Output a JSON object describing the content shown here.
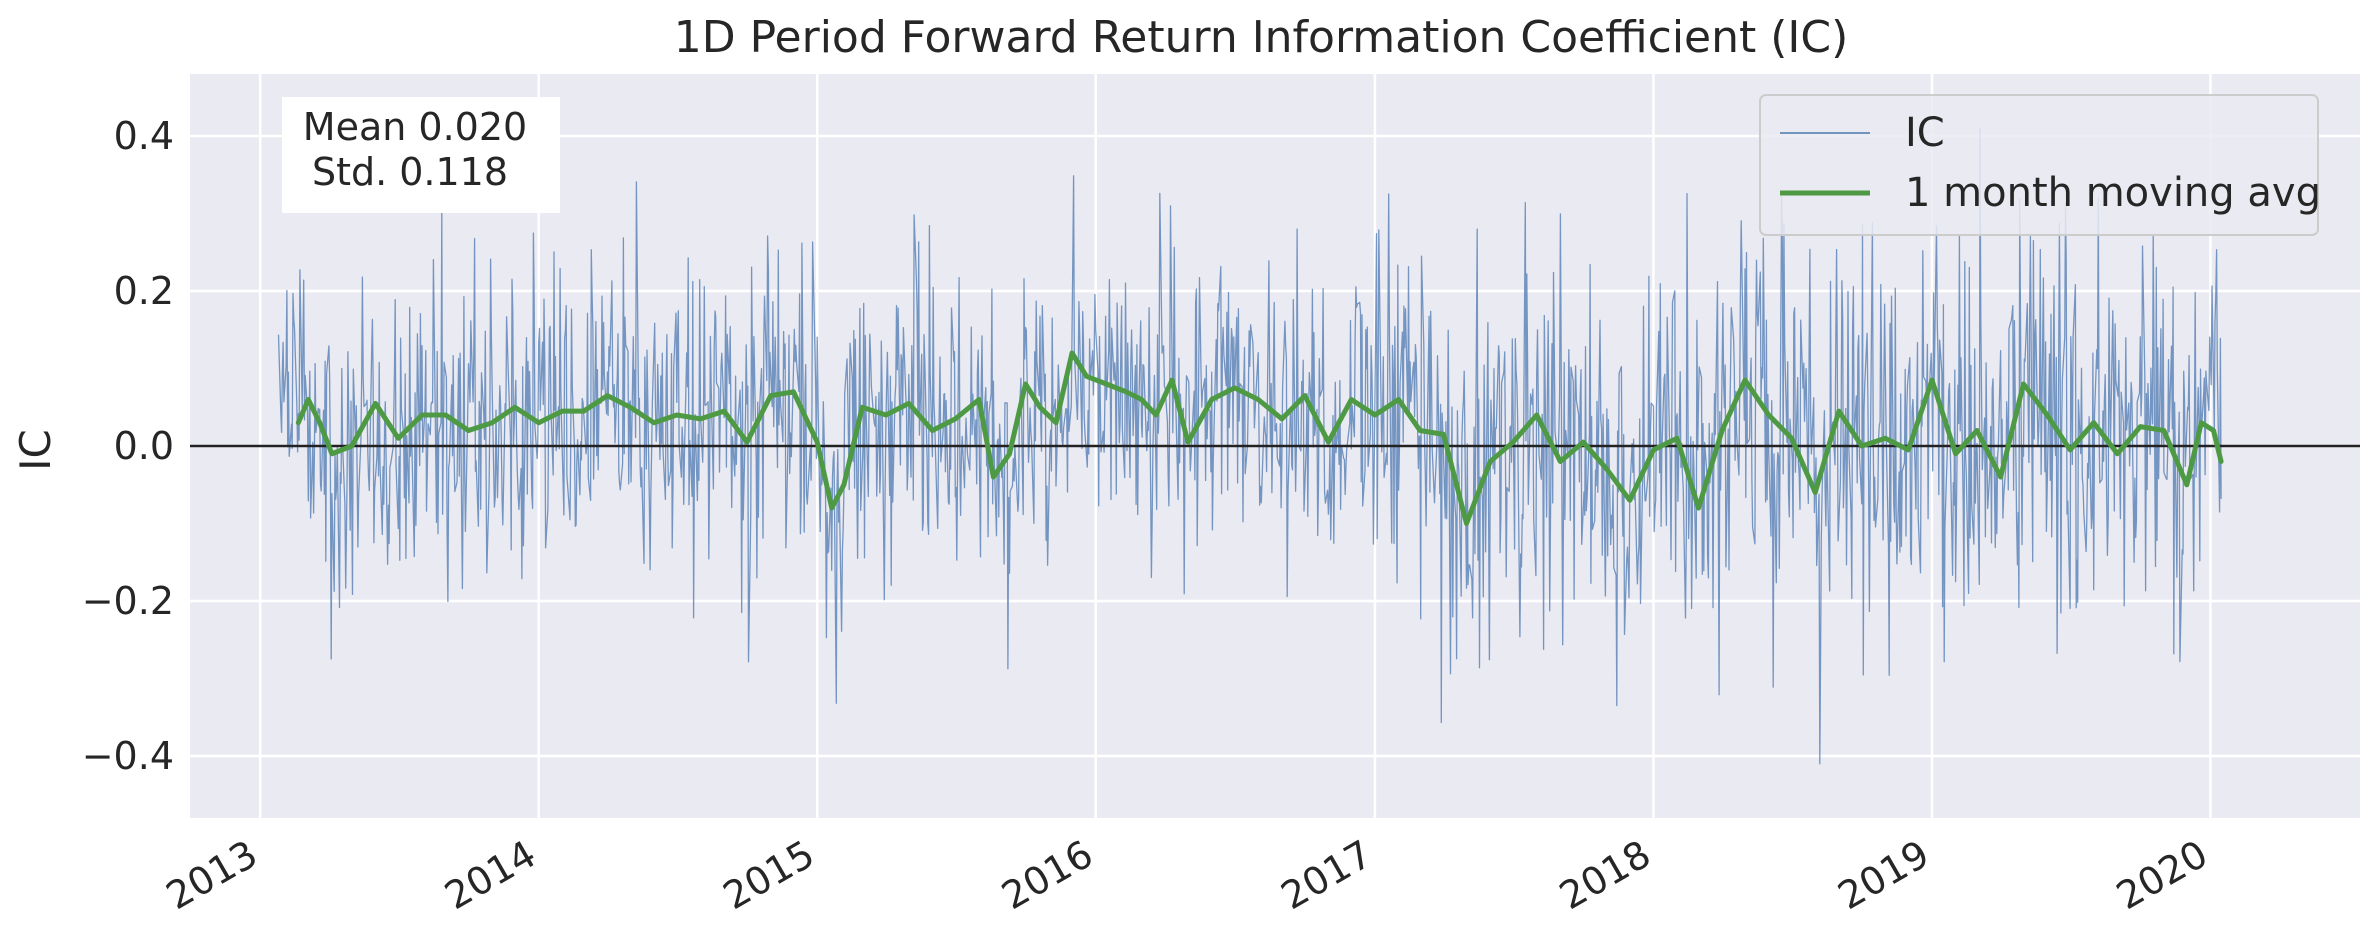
{
  "chart_data": {
    "type": "line",
    "title": "1D Period Forward Return Information Coefficient (IC)",
    "xlabel": "",
    "ylabel": "IC",
    "xlim": [
      "2012-10-01",
      "2020-07-15"
    ],
    "ylim": [
      -0.48,
      0.48
    ],
    "x_ticks": [
      "2013",
      "2014",
      "2015",
      "2016",
      "2017",
      "2018",
      "2019",
      "2020"
    ],
    "y_ticks": [
      -0.4,
      -0.2,
      0.0,
      0.2,
      0.4
    ],
    "y_tick_labels": [
      "−0.4",
      "−0.2",
      "0.0",
      "0.2",
      "0.4"
    ],
    "grid": true,
    "legend_position": "top-right",
    "stats_box": {
      "line1": "Mean 0.020",
      "line2": "Std. 0.118"
    },
    "zero_line": 0.0,
    "background_color": "#eaeaf2",
    "series": [
      {
        "name": "IC",
        "style": "thin-line",
        "color": "#4c78b0",
        "data_start": "2013-01-25",
        "data_end": "2020-01-15",
        "mean": 0.02,
        "std": 0.118,
        "min": -0.41,
        "max": 0.41
      },
      {
        "name": "1 month moving avg",
        "style": "thick-line",
        "color": "#4e9a44",
        "points": [
          [
            "2013-02-20",
            0.03
          ],
          [
            "2013-03-05",
            0.06
          ],
          [
            "2013-03-20",
            0.03
          ],
          [
            "2013-04-05",
            -0.01
          ],
          [
            "2013-05-01",
            0.0
          ],
          [
            "2013-06-01",
            0.055
          ],
          [
            "2013-07-01",
            0.01
          ],
          [
            "2013-08-01",
            0.04
          ],
          [
            "2013-09-01",
            0.04
          ],
          [
            "2013-10-01",
            0.02
          ],
          [
            "2013-11-01",
            0.03
          ],
          [
            "2013-12-01",
            0.05
          ],
          [
            "2014-01-01",
            0.03
          ],
          [
            "2014-02-01",
            0.045
          ],
          [
            "2014-03-01",
            0.045
          ],
          [
            "2014-04-01",
            0.065
          ],
          [
            "2014-05-01",
            0.05
          ],
          [
            "2014-06-01",
            0.03
          ],
          [
            "2014-07-01",
            0.04
          ],
          [
            "2014-08-01",
            0.035
          ],
          [
            "2014-09-01",
            0.045
          ],
          [
            "2014-10-01",
            0.005
          ],
          [
            "2014-11-01",
            0.065
          ],
          [
            "2014-12-01",
            0.07
          ],
          [
            "2015-01-01",
            0.005
          ],
          [
            "2015-01-20",
            -0.08
          ],
          [
            "2015-02-05",
            -0.05
          ],
          [
            "2015-03-01",
            0.05
          ],
          [
            "2015-04-01",
            0.04
          ],
          [
            "2015-05-01",
            0.055
          ],
          [
            "2015-06-01",
            0.02
          ],
          [
            "2015-07-01",
            0.035
          ],
          [
            "2015-08-01",
            0.06
          ],
          [
            "2015-08-20",
            -0.04
          ],
          [
            "2015-09-10",
            -0.01
          ],
          [
            "2015-10-01",
            0.08
          ],
          [
            "2015-10-20",
            0.05
          ],
          [
            "2015-11-10",
            0.03
          ],
          [
            "2015-12-01",
            0.12
          ],
          [
            "2015-12-20",
            0.09
          ],
          [
            "2016-01-15",
            0.08
          ],
          [
            "2016-02-10",
            0.07
          ],
          [
            "2016-03-01",
            0.06
          ],
          [
            "2016-03-20",
            0.04
          ],
          [
            "2016-04-10",
            0.085
          ],
          [
            "2016-05-01",
            0.005
          ],
          [
            "2016-06-01",
            0.06
          ],
          [
            "2016-07-01",
            0.075
          ],
          [
            "2016-08-01",
            0.06
          ],
          [
            "2016-09-01",
            0.035
          ],
          [
            "2016-10-01",
            0.065
          ],
          [
            "2016-11-01",
            0.005
          ],
          [
            "2016-12-01",
            0.06
          ],
          [
            "2017-01-01",
            0.04
          ],
          [
            "2017-02-01",
            0.06
          ],
          [
            "2017-03-01",
            0.02
          ],
          [
            "2017-04-01",
            0.015
          ],
          [
            "2017-05-01",
            -0.1
          ],
          [
            "2017-06-01",
            -0.02
          ],
          [
            "2017-07-01",
            0.005
          ],
          [
            "2017-08-01",
            0.04
          ],
          [
            "2017-09-01",
            -0.02
          ],
          [
            "2017-10-01",
            0.005
          ],
          [
            "2017-11-01",
            -0.03
          ],
          [
            "2017-12-01",
            -0.07
          ],
          [
            "2018-01-01",
            -0.005
          ],
          [
            "2018-02-01",
            0.01
          ],
          [
            "2018-03-01",
            -0.08
          ],
          [
            "2018-04-01",
            0.02
          ],
          [
            "2018-05-01",
            0.085
          ],
          [
            "2018-06-01",
            0.04
          ],
          [
            "2018-07-01",
            0.01
          ],
          [
            "2018-08-01",
            -0.06
          ],
          [
            "2018-09-01",
            0.045
          ],
          [
            "2018-10-01",
            0.0
          ],
          [
            "2018-11-01",
            0.01
          ],
          [
            "2018-12-01",
            -0.005
          ],
          [
            "2019-01-01",
            0.085
          ],
          [
            "2019-02-01",
            -0.01
          ],
          [
            "2019-03-01",
            0.02
          ],
          [
            "2019-04-01",
            -0.04
          ],
          [
            "2019-05-01",
            0.08
          ],
          [
            "2019-06-01",
            0.04
          ],
          [
            "2019-07-01",
            -0.005
          ],
          [
            "2019-08-01",
            0.03
          ],
          [
            "2019-09-01",
            -0.01
          ],
          [
            "2019-10-01",
            0.025
          ],
          [
            "2019-11-01",
            0.02
          ],
          [
            "2019-12-01",
            -0.05
          ],
          [
            "2019-12-20",
            0.03
          ],
          [
            "2020-01-05",
            0.02
          ],
          [
            "2020-01-15",
            -0.02
          ]
        ]
      }
    ]
  }
}
